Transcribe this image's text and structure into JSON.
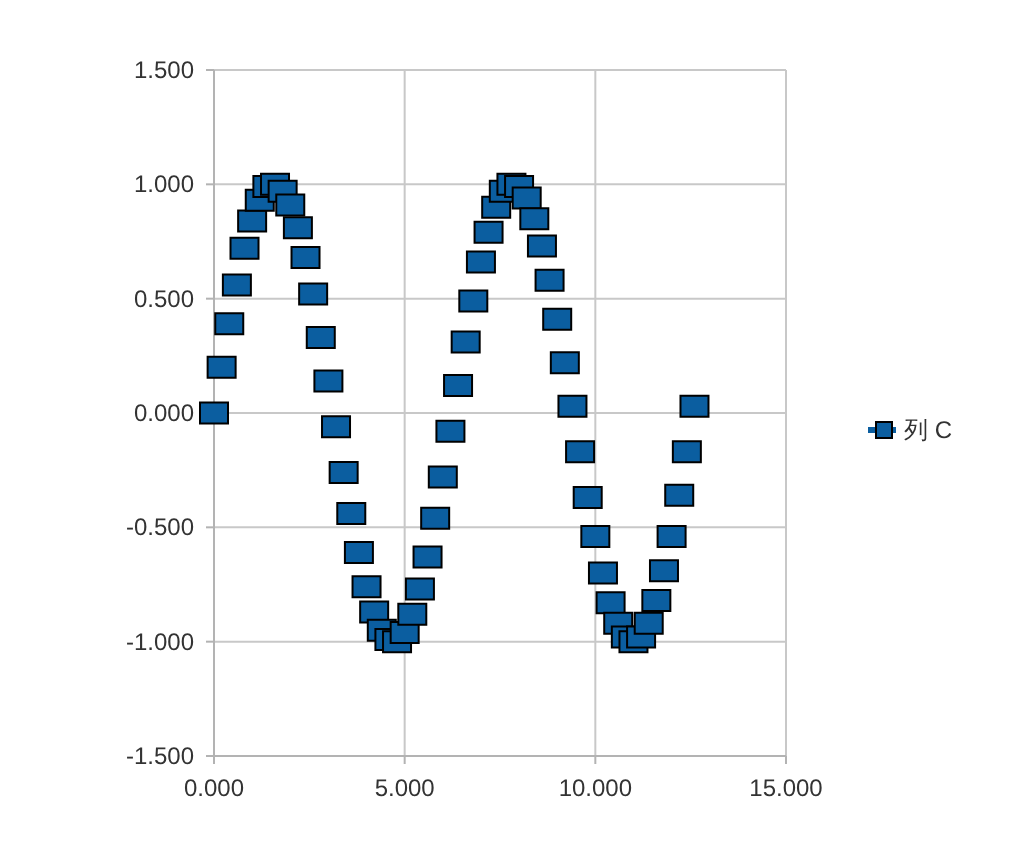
{
  "chart_data": {
    "type": "scatter",
    "marker": "square",
    "grid": true,
    "legend": "right",
    "xlim": [
      0,
      15
    ],
    "xticks": [
      {
        "value": 0,
        "label": "0.000"
      },
      {
        "value": 5,
        "label": "5.000"
      },
      {
        "value": 10,
        "label": "10.000"
      },
      {
        "value": 15,
        "label": "15.000"
      }
    ],
    "ylim": [
      -1.5,
      1.5
    ],
    "yticks": [
      {
        "value": -1.5,
        "label": "-1.500"
      },
      {
        "value": -1,
        "label": "-1.000"
      },
      {
        "value": -0.5,
        "label": "-0.500"
      },
      {
        "value": 0,
        "label": "0.000"
      },
      {
        "value": 0.5,
        "label": "0.500"
      },
      {
        "value": 1,
        "label": "1.000"
      },
      {
        "value": 1.5,
        "label": "1.500"
      }
    ],
    "series": [
      {
        "name": "列 C",
        "color": "#0b5ea0",
        "x": [
          0,
          0.2,
          0.4,
          0.6,
          0.8,
          1,
          1.2,
          1.4,
          1.6,
          1.8,
          2,
          2.2,
          2.4,
          2.6,
          2.8,
          3,
          3.2,
          3.4,
          3.6,
          3.8,
          4,
          4.2,
          4.4,
          4.6,
          4.8,
          5,
          5.2,
          5.4,
          5.6,
          5.8,
          6,
          6.2,
          6.4,
          6.6,
          6.8,
          7,
          7.2,
          7.4,
          7.6,
          7.8,
          8,
          8.2,
          8.4,
          8.6,
          8.8,
          9,
          9.2,
          9.4,
          9.6,
          9.8,
          10,
          10.2,
          10.4,
          10.6,
          10.8,
          11,
          11.2,
          11.4,
          11.6,
          11.8,
          12,
          12.2,
          12.4,
          12.6
        ],
        "values": [
          0,
          0.2,
          0.39,
          0.56,
          0.72,
          0.84,
          0.93,
          0.99,
          1,
          0.97,
          0.91,
          0.81,
          0.68,
          0.52,
          0.33,
          0.14,
          -0.06,
          -0.26,
          -0.44,
          -0.61,
          -0.76,
          -0.87,
          -0.95,
          -0.99,
          -1,
          -0.96,
          -0.88,
          -0.77,
          -0.63,
          -0.46,
          -0.28,
          -0.08,
          0.12,
          0.31,
          0.49,
          0.66,
          0.79,
          0.9,
          0.97,
          1,
          0.99,
          0.94,
          0.85,
          0.73,
          0.58,
          0.41,
          0.22,
          0.03,
          -0.17,
          -0.37,
          -0.54,
          -0.7,
          -0.83,
          -0.92,
          -0.98,
          -1,
          -0.98,
          -0.92,
          -0.82,
          -0.69,
          -0.54,
          -0.36,
          -0.17,
          0.03
        ]
      }
    ]
  }
}
